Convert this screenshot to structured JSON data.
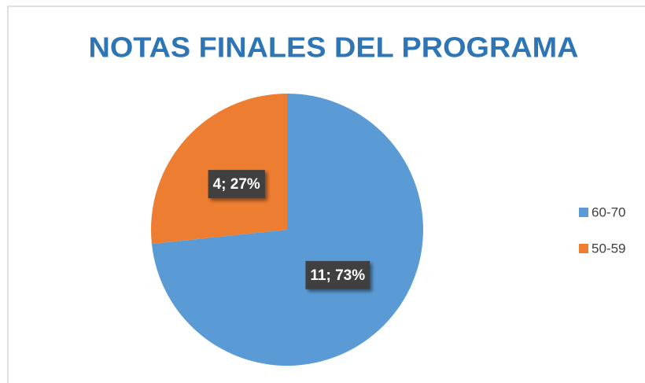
{
  "chart_data": {
    "type": "pie",
    "title": "NOTAS FINALES DEL PROGRAMA",
    "categories": [
      "60-70",
      "50-59"
    ],
    "values": [
      11,
      4
    ],
    "value_labels": [
      "11; 73%",
      "4; 27%"
    ],
    "colors": [
      "#5b9bd5",
      "#ed7d31"
    ],
    "legend": "right"
  }
}
